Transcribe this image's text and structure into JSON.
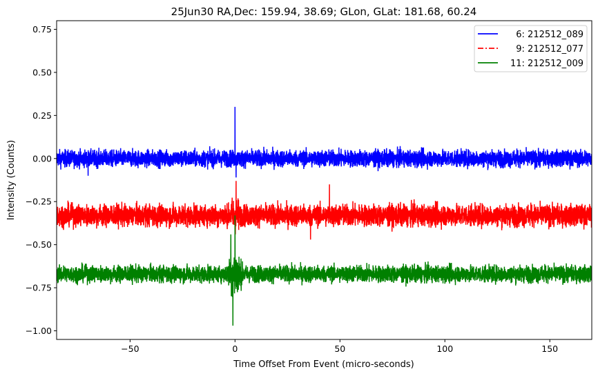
{
  "chart_data": {
    "type": "line",
    "title": "25Jun30 RA,Dec:  159.94,  38.69; GLon, GLat:  181.68,  60.24",
    "xlabel": "Time Offset From Event (micro-seconds)",
    "ylabel": "Intensity (Counts)",
    "xlim": [
      -85,
      170
    ],
    "ylim": [
      -1.05,
      0.8
    ],
    "xticks": [
      -50,
      0,
      50,
      100,
      150
    ],
    "xtick_labels": [
      "−50",
      "0",
      "50",
      "100",
      "150"
    ],
    "yticks": [
      0.75,
      0.5,
      0.25,
      0.0,
      -0.25,
      -0.5,
      -0.75,
      -1.0
    ],
    "ytick_labels": [
      "0.75",
      "0.50",
      "0.25",
      "0.00",
      "−0.25",
      "−0.50",
      "−0.75",
      "−1.00"
    ],
    "grid": false,
    "legend_position": "top-right",
    "series": [
      {
        "name": "  6: 212512_089",
        "color": "#0000ff",
        "style": "solid",
        "baseline": 0.0,
        "noise_amplitude": 0.035,
        "events": [
          {
            "x": 0.0,
            "y": 0.3
          },
          {
            "x": 0.5,
            "y": -0.11
          },
          {
            "x": -70,
            "y": -0.1
          }
        ]
      },
      {
        "name": "  9: 212512_077",
        "color": "#ff0000",
        "style": "dashdot",
        "baseline": -0.33,
        "noise_amplitude": 0.045,
        "events": [
          {
            "x": 0.5,
            "y": -0.13
          },
          {
            "x": 45,
            "y": -0.15
          },
          {
            "x": 36,
            "y": -0.47
          }
        ]
      },
      {
        "name": "11: 212512_009",
        "color": "#008000",
        "style": "solid",
        "baseline": -0.67,
        "noise_amplitude": 0.035,
        "events": [
          {
            "x": 0.0,
            "y": -0.33
          },
          {
            "x": -1.0,
            "y": -0.97
          },
          {
            "x": -2.0,
            "y": -0.44
          }
        ]
      }
    ]
  }
}
